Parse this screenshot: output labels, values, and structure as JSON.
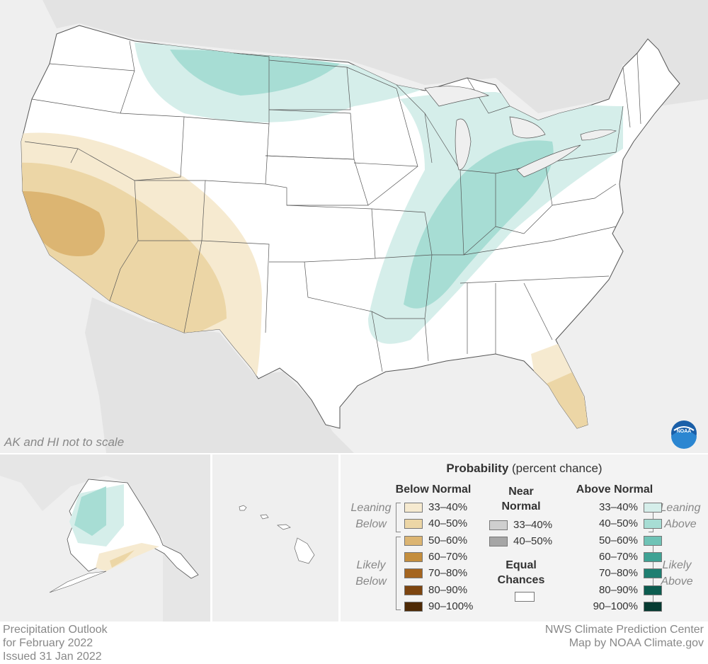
{
  "map_note": "AK and HI not to scale",
  "legend": {
    "title_bold": "Probability",
    "title_rest": " (percent chance)",
    "below_normal": {
      "heading": "Below Normal",
      "leaning_label": [
        "Leaning",
        "Below"
      ],
      "likely_label": [
        "Likely",
        "Below"
      ],
      "items": [
        {
          "label": "33–40%",
          "color": "#f6ead0"
        },
        {
          "label": "40–50%",
          "color": "#ecd6a6"
        },
        {
          "label": "50–60%",
          "color": "#dcb572"
        },
        {
          "label": "60–70%",
          "color": "#c48e3e"
        },
        {
          "label": "70–80%",
          "color": "#a5651f"
        },
        {
          "label": "80–90%",
          "color": "#7d4510"
        },
        {
          "label": "90–100%",
          "color": "#4e2a06"
        }
      ]
    },
    "near_normal": {
      "heading": [
        "Near",
        "Normal"
      ],
      "items": [
        {
          "label": "33–40%",
          "color": "#cfcfcf"
        },
        {
          "label": "40–50%",
          "color": "#a6a6a6"
        }
      ]
    },
    "equal_chances": {
      "heading": [
        "Equal",
        "Chances"
      ],
      "color": "#ffffff"
    },
    "above_normal": {
      "heading": "Above Normal",
      "leaning_label": [
        "Leaning",
        "Above"
      ],
      "likely_label": [
        "Likely",
        "Above"
      ],
      "items": [
        {
          "label": "33–40%",
          "color": "#d5eeea"
        },
        {
          "label": "40–50%",
          "color": "#a7ddd4"
        },
        {
          "label": "50–60%",
          "color": "#6fc3b6"
        },
        {
          "label": "60–70%",
          "color": "#3fa294"
        },
        {
          "label": "70–80%",
          "color": "#1e7f71"
        },
        {
          "label": "80–90%",
          "color": "#0c5c4f"
        },
        {
          "label": "90–100%",
          "color": "#063b32"
        }
      ]
    }
  },
  "footer_left": [
    "Precipitation Outlook",
    "for February 2022",
    "Issued 31 Jan 2022"
  ],
  "footer_right": [
    "NWS Climate Prediction Center",
    "Map by NOAA Climate.gov"
  ],
  "logo_text": "NOAA"
}
